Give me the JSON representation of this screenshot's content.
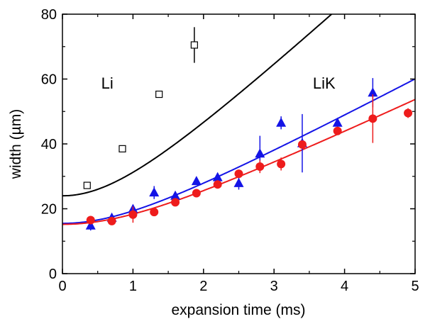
{
  "chart_data": {
    "type": "scatter",
    "title": "",
    "xlabel": "expansion time (ms)",
    "ylabel": "width (µm)",
    "xlim": [
      0,
      5
    ],
    "ylim": [
      0,
      80
    ],
    "x_ticks": [
      "0",
      "1",
      "2",
      "3",
      "4",
      "5"
    ],
    "y_ticks": [
      "0",
      "20",
      "40",
      "60",
      "80"
    ],
    "grid": false,
    "legend": "none",
    "annotations": [
      {
        "text": "Li",
        "x": 0.55,
        "y": 57
      },
      {
        "text": "LiK",
        "x": 3.55,
        "y": 57
      }
    ],
    "series": [
      {
        "color": "#000000",
        "marker": "open-square",
        "points": [
          {
            "x": 0.35,
            "y": 27.2,
            "err": 1
          },
          {
            "x": 0.85,
            "y": 38.5,
            "err": 1
          },
          {
            "x": 1.37,
            "y": 55.3,
            "err": 1
          },
          {
            "x": 1.87,
            "y": 70.5,
            "err": 5.5
          }
        ],
        "fit": {
          "w0": 24.0,
          "a": 20.0
        }
      },
      {
        "color": "#1414e6",
        "marker": "triangle",
        "points": [
          {
            "x": 0.4,
            "y": 14.8,
            "err": 1.5
          },
          {
            "x": 0.7,
            "y": 17.2,
            "err": 0.5
          },
          {
            "x": 1.0,
            "y": 19.9,
            "err": 0.5
          },
          {
            "x": 1.3,
            "y": 25.0,
            "err": 2
          },
          {
            "x": 1.6,
            "y": 24.0,
            "err": 0.5
          },
          {
            "x": 1.9,
            "y": 28.5,
            "err": 0.5
          },
          {
            "x": 2.2,
            "y": 29.7,
            "err": 0.5
          },
          {
            "x": 2.5,
            "y": 27.9,
            "err": 2
          },
          {
            "x": 2.8,
            "y": 37.0,
            "err": 5.5
          },
          {
            "x": 3.1,
            "y": 46.5,
            "err": 2
          },
          {
            "x": 3.4,
            "y": 40.2,
            "err": 9
          },
          {
            "x": 3.9,
            "y": 46.5,
            "err": 1.5
          },
          {
            "x": 4.4,
            "y": 55.8,
            "err": 4.5
          }
        ],
        "fit": {
          "w0": 15.5,
          "a": 11.6
        }
      },
      {
        "color": "#ee1c1c",
        "marker": "circle",
        "points": [
          {
            "x": 0.4,
            "y": 16.5,
            "err": 0.5
          },
          {
            "x": 0.7,
            "y": 16.2,
            "err": 0.5
          },
          {
            "x": 1.0,
            "y": 18.2,
            "err": 2.5
          },
          {
            "x": 1.3,
            "y": 19.0,
            "err": 0.5
          },
          {
            "x": 1.6,
            "y": 22.0,
            "err": 0.5
          },
          {
            "x": 1.9,
            "y": 24.8,
            "err": 0.5
          },
          {
            "x": 2.2,
            "y": 27.5,
            "err": 0.5
          },
          {
            "x": 2.5,
            "y": 30.8,
            "err": 0.5
          },
          {
            "x": 2.8,
            "y": 33.0,
            "err": 2
          },
          {
            "x": 3.1,
            "y": 33.8,
            "err": 2
          },
          {
            "x": 3.4,
            "y": 39.8,
            "err": 0.5
          },
          {
            "x": 3.9,
            "y": 44.0,
            "err": 0.5
          },
          {
            "x": 4.4,
            "y": 47.8,
            "err": 7.5
          },
          {
            "x": 4.9,
            "y": 49.5,
            "err": 1.5
          }
        ],
        "fit": {
          "w0": 15.2,
          "a": 10.3
        }
      }
    ]
  }
}
